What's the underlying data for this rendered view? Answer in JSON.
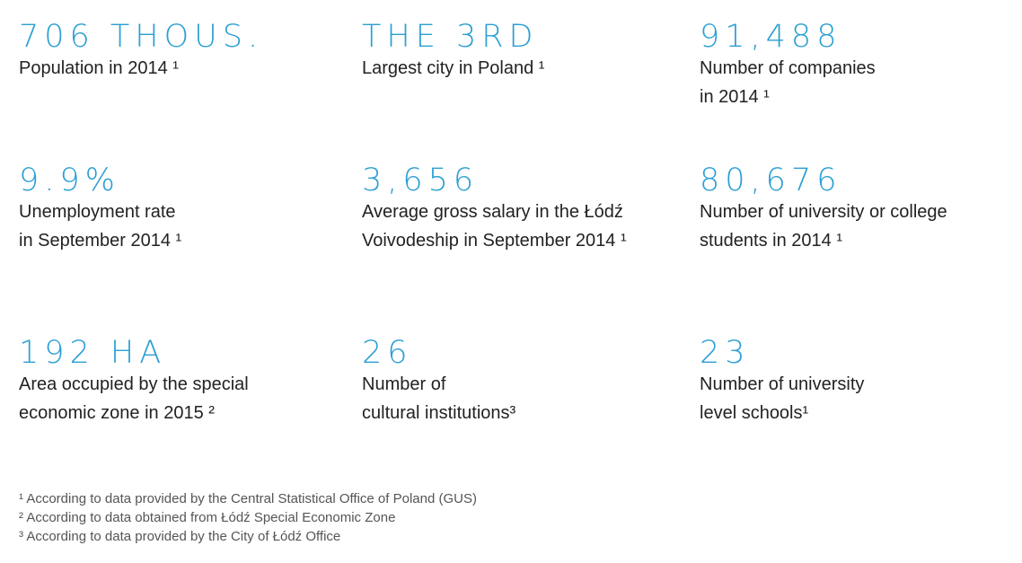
{
  "stats": [
    {
      "value": "706 THOUS.",
      "label": "Population in 2014 ¹"
    },
    {
      "value": "THE 3RD",
      "label": "Largest city in Poland ¹"
    },
    {
      "value": "91,488",
      "label": "Number of companies\n in 2014 ¹"
    },
    {
      "value": "9.9%",
      "label": "Unemployment rate\nin September 2014 ¹"
    },
    {
      "value": "3,656",
      "label": "Average gross salary in the Łódź\nVoivodeship in September 2014 ¹"
    },
    {
      "value": "80,676",
      "label": "Number of university or college\nstudents in 2014 ¹"
    },
    {
      "value": "192 HA",
      "label": "Area occupied by the special\neconomic zone in 2015 ²"
    },
    {
      "value": "26",
      "label": "Number of\ncultural institutions³"
    },
    {
      "value": "23",
      "label": "Number of university\nlevel schools¹"
    }
  ],
  "footnotes": [
    "¹ According to data provided by the Central Statistical Office of Poland (GUS)",
    "² According to data obtained from Łódź Special Economic Zone",
    "³ According to data provided by the City of Łódź Office"
  ],
  "colors": {
    "accent": "#2b9fd3",
    "text": "#222222",
    "footnote_text": "#555555"
  }
}
